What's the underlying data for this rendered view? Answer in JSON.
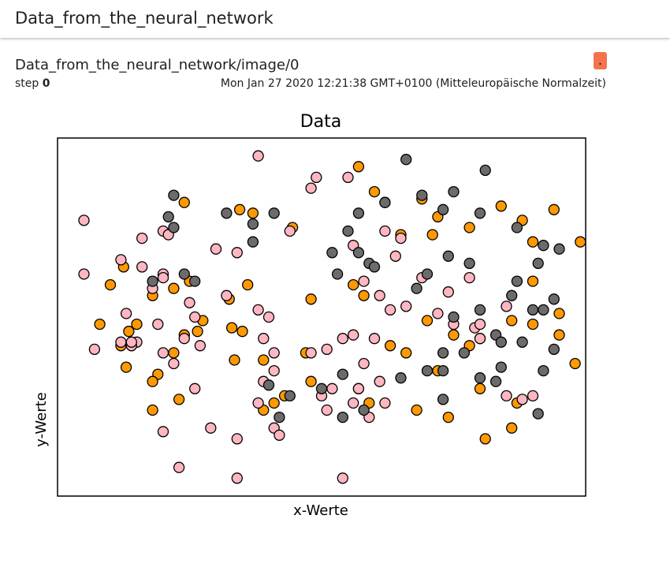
{
  "header": {
    "title": "Data_from_the_neural_network"
  },
  "card": {
    "title": "Data_from_the_neural_network/image/0",
    "step_label": "step",
    "step_value": "0",
    "timestamp": "Mon Jan 27 2020 12:21:38 GMT+0100 (Mitteleuropäische Normalzeit)",
    "badge_text": "."
  },
  "colors": {
    "orange": "#ff9900",
    "pink": "#ffb6c1",
    "gray": "#6b6b6b",
    "badge": "#f4734d"
  },
  "chart_data": {
    "type": "scatter",
    "title": "Data",
    "xlabel": "x-Werte",
    "ylabel": "y-Werte",
    "xlim": [
      0,
      100
    ],
    "ylim": [
      0,
      100
    ],
    "ticks": "none",
    "grid": false,
    "legend": "none",
    "series": [
      {
        "color": "#ff9900",
        "points": [
          [
            34.5,
            80
          ],
          [
            24,
            82
          ],
          [
            37,
            79
          ],
          [
            44.5,
            75
          ],
          [
            12.5,
            64
          ],
          [
            22,
            58
          ],
          [
            10,
            59
          ],
          [
            18,
            56
          ],
          [
            25,
            60
          ],
          [
            36,
            59
          ],
          [
            8,
            48
          ],
          [
            15,
            48
          ],
          [
            13.5,
            46
          ],
          [
            26.5,
            46
          ],
          [
            33,
            47
          ],
          [
            22,
            40
          ],
          [
            33.5,
            38
          ],
          [
            39,
            38
          ],
          [
            24,
            45
          ],
          [
            35,
            46
          ],
          [
            27.5,
            49
          ],
          [
            32.5,
            55
          ],
          [
            48,
            32
          ],
          [
            57,
            30
          ],
          [
            39,
            24
          ],
          [
            18,
            24
          ],
          [
            19,
            34
          ],
          [
            23,
            27
          ],
          [
            43,
            28
          ],
          [
            47,
            40
          ],
          [
            63,
            42
          ],
          [
            66,
            40
          ],
          [
            59,
            26
          ],
          [
            68,
            24
          ],
          [
            74,
            22
          ],
          [
            80,
            30
          ],
          [
            87,
            26
          ],
          [
            86,
            19
          ],
          [
            81,
            16
          ],
          [
            72,
            35
          ],
          [
            78,
            42
          ],
          [
            80,
            44
          ],
          [
            86,
            49
          ],
          [
            90,
            48
          ],
          [
            95,
            51
          ],
          [
            56,
            59
          ],
          [
            48,
            55
          ],
          [
            58,
            56
          ],
          [
            70,
            49
          ],
          [
            75,
            45
          ],
          [
            95,
            45
          ],
          [
            98,
            37
          ],
          [
            90,
            60
          ],
          [
            69,
            83
          ],
          [
            72,
            78
          ],
          [
            60,
            85
          ],
          [
            57,
            92
          ],
          [
            71,
            73
          ],
          [
            65,
            73
          ],
          [
            78,
            75
          ],
          [
            84,
            81
          ],
          [
            88,
            77
          ],
          [
            94,
            80
          ],
          [
            99,
            71
          ],
          [
            90,
            71
          ],
          [
            12,
            42
          ],
          [
            13,
            36
          ],
          [
            18,
            32
          ],
          [
            41,
            26
          ]
        ]
      },
      {
        "color": "#ffb6c1",
        "points": [
          [
            38,
            95
          ],
          [
            49,
            89
          ],
          [
            48,
            86
          ],
          [
            55,
            89
          ],
          [
            62,
            82
          ],
          [
            44,
            74
          ],
          [
            30,
            69
          ],
          [
            34,
            68
          ],
          [
            5,
            77
          ],
          [
            16,
            72
          ],
          [
            20,
            74
          ],
          [
            21,
            73
          ],
          [
            12,
            66
          ],
          [
            16,
            64
          ],
          [
            20,
            62
          ],
          [
            5,
            62
          ],
          [
            18,
            58
          ],
          [
            25,
            54
          ],
          [
            26,
            50
          ],
          [
            32,
            56
          ],
          [
            38,
            52
          ],
          [
            40,
            50
          ],
          [
            13,
            51
          ],
          [
            19,
            48
          ],
          [
            15,
            43
          ],
          [
            20,
            40
          ],
          [
            22,
            37
          ],
          [
            24,
            44
          ],
          [
            27,
            42
          ],
          [
            39,
            44
          ],
          [
            7,
            41
          ],
          [
            12,
            43
          ],
          [
            14,
            42
          ],
          [
            26,
            30
          ],
          [
            39,
            32
          ],
          [
            38,
            26
          ],
          [
            41,
            19
          ],
          [
            42,
            17
          ],
          [
            51,
            24
          ],
          [
            50,
            28
          ],
          [
            58,
            37
          ],
          [
            60,
            44
          ],
          [
            61,
            56
          ],
          [
            63,
            52
          ],
          [
            66,
            53
          ],
          [
            69,
            61
          ],
          [
            78,
            61
          ],
          [
            79,
            47
          ],
          [
            80,
            44
          ],
          [
            85,
            53
          ],
          [
            74,
            57
          ],
          [
            72,
            51
          ],
          [
            75,
            48
          ],
          [
            85,
            28
          ],
          [
            88,
            27
          ],
          [
            90,
            28
          ],
          [
            23,
            8
          ],
          [
            34,
            5
          ],
          [
            54,
            5
          ],
          [
            20,
            18
          ],
          [
            29,
            19
          ],
          [
            34,
            16
          ],
          [
            20,
            61
          ],
          [
            14,
            43
          ],
          [
            41,
            40
          ],
          [
            51,
            41
          ],
          [
            41,
            35
          ],
          [
            61,
            32
          ],
          [
            56,
            45
          ],
          [
            54,
            44
          ],
          [
            48,
            40
          ],
          [
            52,
            30
          ],
          [
            56,
            26
          ],
          [
            62,
            26
          ],
          [
            57,
            30
          ],
          [
            59,
            22
          ],
          [
            80,
            48
          ],
          [
            58,
            60
          ],
          [
            62,
            74
          ],
          [
            65,
            72
          ],
          [
            64,
            67
          ],
          [
            56,
            70
          ]
        ]
      },
      {
        "color": "#6b6b6b",
        "points": [
          [
            66,
            94
          ],
          [
            81,
            91
          ],
          [
            75,
            85
          ],
          [
            69,
            84
          ],
          [
            62,
            82
          ],
          [
            57,
            79
          ],
          [
            55,
            74
          ],
          [
            57,
            68
          ],
          [
            53,
            62
          ],
          [
            52,
            68
          ],
          [
            59,
            65
          ],
          [
            60,
            64
          ],
          [
            73,
            80
          ],
          [
            80,
            79
          ],
          [
            87,
            75
          ],
          [
            92,
            70
          ],
          [
            95,
            69
          ],
          [
            91,
            65
          ],
          [
            87,
            60
          ],
          [
            86,
            56
          ],
          [
            78,
            65
          ],
          [
            74,
            67
          ],
          [
            70,
            62
          ],
          [
            68,
            58
          ],
          [
            75,
            50
          ],
          [
            83,
            45
          ],
          [
            88,
            43
          ],
          [
            94,
            41
          ],
          [
            92,
            52
          ],
          [
            80,
            52
          ],
          [
            73,
            40
          ],
          [
            80,
            33
          ],
          [
            84,
            36
          ],
          [
            84,
            43
          ],
          [
            83,
            32
          ],
          [
            92,
            35
          ],
          [
            73,
            27
          ],
          [
            91,
            23
          ],
          [
            22,
            84
          ],
          [
            21,
            78
          ],
          [
            22,
            75
          ],
          [
            32,
            79
          ],
          [
            37,
            76
          ],
          [
            41,
            79
          ],
          [
            37,
            71
          ],
          [
            18,
            60
          ],
          [
            24,
            62
          ],
          [
            26,
            60
          ],
          [
            40,
            31
          ],
          [
            44,
            28
          ],
          [
            42,
            22
          ],
          [
            50,
            30
          ],
          [
            54,
            22
          ],
          [
            58,
            24
          ],
          [
            54,
            34
          ],
          [
            65,
            33
          ],
          [
            70,
            35
          ],
          [
            73,
            35
          ],
          [
            77,
            40
          ],
          [
            90,
            52
          ],
          [
            94,
            55
          ]
        ]
      }
    ]
  }
}
